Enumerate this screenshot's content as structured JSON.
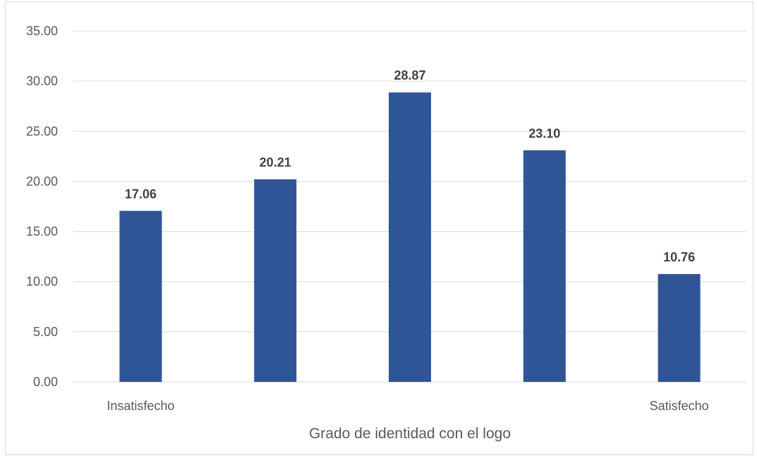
{
  "chart_data": {
    "type": "bar",
    "title": "",
    "xlabel": "Grado de identidad con el logo",
    "ylabel": "",
    "categories": [
      "Insatisfecho",
      "",
      "",
      "",
      "Satisfecho"
    ],
    "values": [
      17.06,
      20.21,
      28.87,
      23.1,
      10.76
    ],
    "data_labels": [
      "17.06",
      "20.21",
      "28.87",
      "23.10",
      "10.76"
    ],
    "ylim": [
      0,
      35
    ],
    "yticks": [
      "0.00",
      "5.00",
      "10.00",
      "15.00",
      "20.00",
      "25.00",
      "30.00",
      "35.00"
    ],
    "grid": true,
    "legend": "none",
    "bar_color": "#2F5597",
    "grid_color": "#d9d9d9"
  }
}
